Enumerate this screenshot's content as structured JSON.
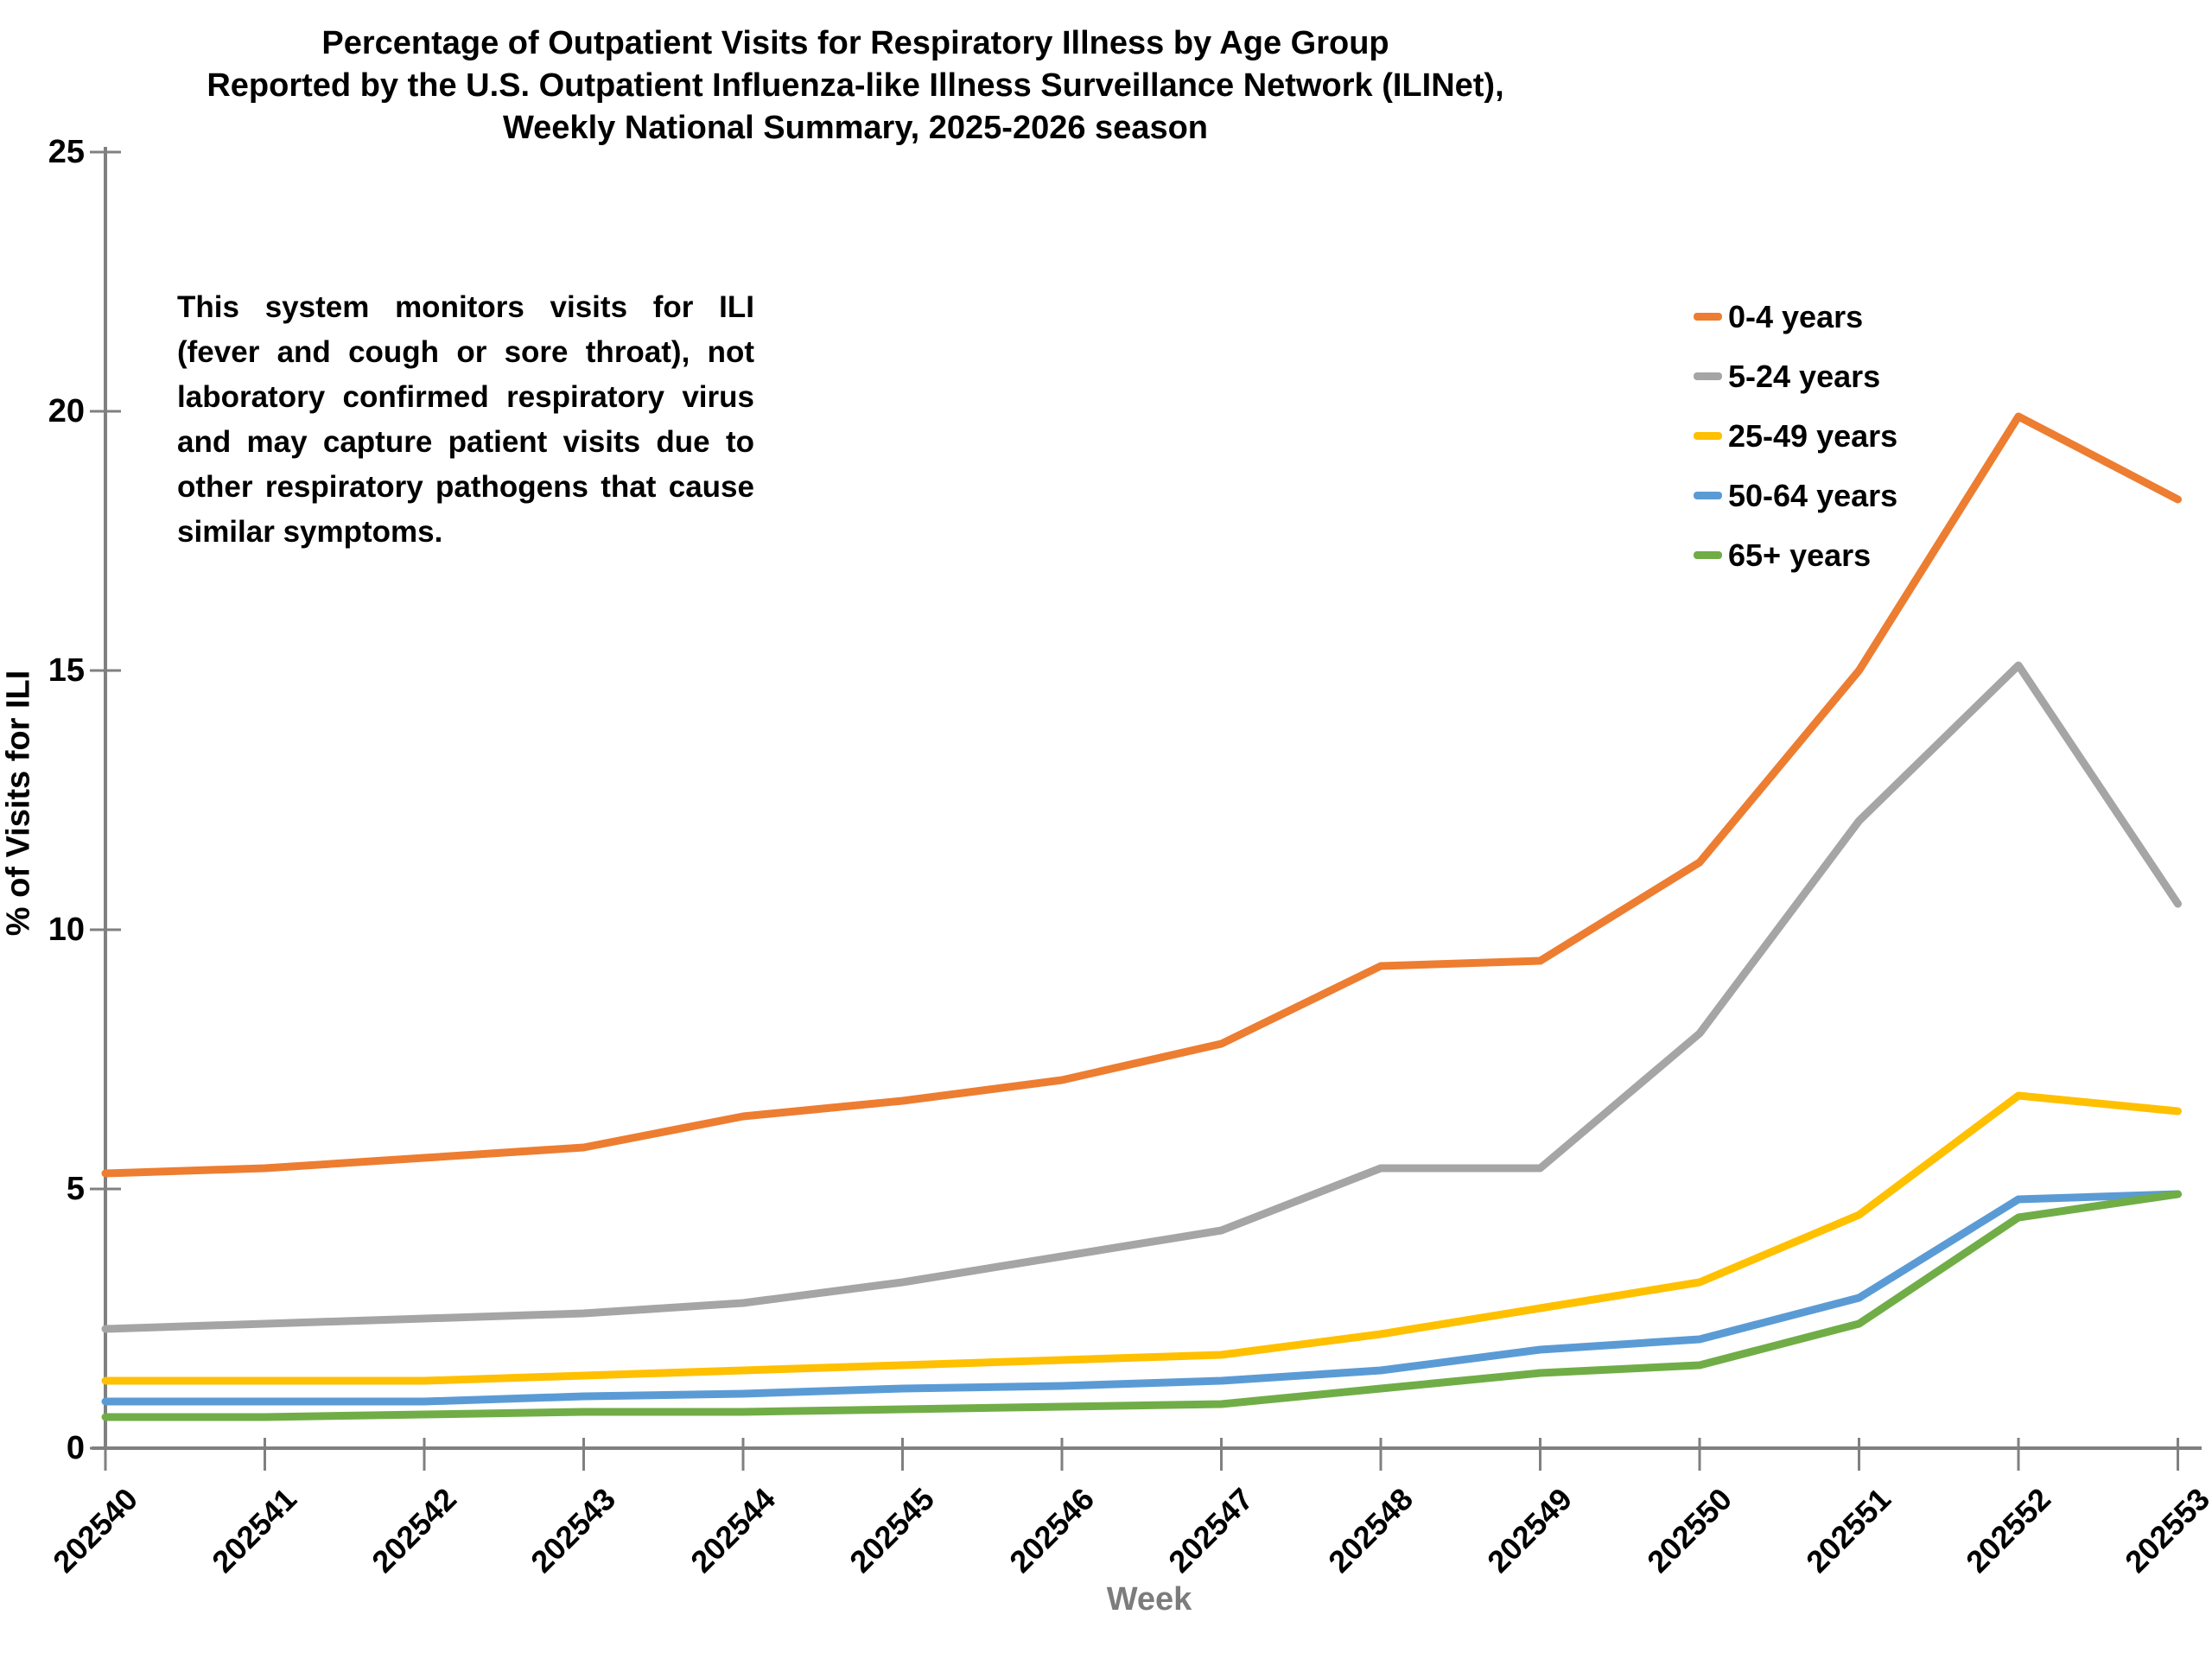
{
  "title": {
    "line1": "Percentage of Outpatient Visits for Respiratory Illness by Age Group",
    "line2": "Reported by the U.S. Outpatient Influenza-like Illness Surveillance Network (ILINet),",
    "line3": "Weekly National Summary, 2025-2026 season"
  },
  "annotation": "This system monitors visits for ILI (fever and cough or sore throat), not laboratory confirmed respiratory virus and may capture patient visits due to other respiratory pathogens that cause similar symptoms.",
  "axes": {
    "y_title": "% of Visits for ILI",
    "x_title": "Week",
    "y_ticks": [
      0,
      5,
      10,
      15,
      20,
      25
    ]
  },
  "colors": {
    "axis": "#808080",
    "text": "#000000",
    "x_title_color": "#7c7c7c"
  },
  "chart_data": {
    "type": "line",
    "title": "Percentage of Outpatient Visits for Respiratory Illness by Age Group, Reported by the U.S. Outpatient Influenza-like Illness Surveillance Network (ILINet), Weekly National Summary, 2025-2026 season",
    "xlabel": "Week",
    "ylabel": "% of Visits for ILI",
    "ylim": [
      0,
      25
    ],
    "grid": false,
    "legend_position": "upper right",
    "categories": [
      "202540",
      "202541",
      "202542",
      "202543",
      "202544",
      "202545",
      "202546",
      "202547",
      "202548",
      "202549",
      "202550",
      "202551",
      "202552",
      "202553"
    ],
    "series": [
      {
        "name": "0-4 years",
        "color": "#ED7D31",
        "values": [
          5.3,
          5.4,
          5.6,
          5.8,
          6.4,
          6.7,
          7.1,
          7.8,
          9.3,
          9.4,
          11.3,
          15.0,
          19.9,
          18.3
        ]
      },
      {
        "name": "5-24 years",
        "color": "#A5A5A5",
        "values": [
          2.3,
          2.4,
          2.5,
          2.6,
          2.8,
          3.2,
          3.7,
          4.2,
          5.4,
          5.4,
          8.0,
          12.1,
          15.1,
          10.5
        ]
      },
      {
        "name": "25-49 years",
        "color": "#FFC000",
        "values": [
          1.3,
          1.3,
          1.3,
          1.4,
          1.5,
          1.6,
          1.7,
          1.8,
          2.2,
          2.7,
          3.2,
          4.5,
          6.8,
          6.5
        ]
      },
      {
        "name": "50-64 years",
        "color": "#5B9BD5",
        "values": [
          0.9,
          0.9,
          0.9,
          1.0,
          1.05,
          1.15,
          1.2,
          1.3,
          1.5,
          1.9,
          2.1,
          2.9,
          4.8,
          4.9
        ]
      },
      {
        "name": "65+ years",
        "color": "#70AD47",
        "values": [
          0.6,
          0.6,
          0.65,
          0.7,
          0.7,
          0.75,
          0.8,
          0.85,
          1.15,
          1.45,
          1.6,
          2.4,
          4.45,
          4.9
        ]
      }
    ]
  }
}
